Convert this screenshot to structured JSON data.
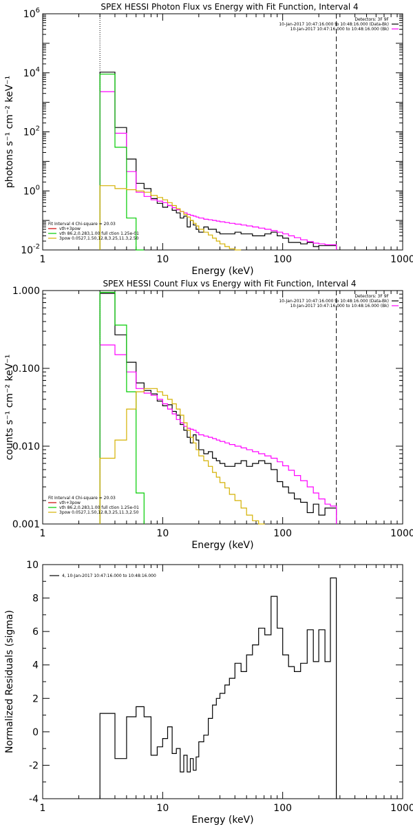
{
  "chart_data": [
    {
      "type": "line",
      "title": "SPEX HESSI Photon Flux vs Energy with Fit Function, Interval 4",
      "xlabel": "Energy (keV)",
      "ylabel": "photons s⁻¹ cm⁻² keV⁻¹",
      "xscale": "log",
      "yscale": "log",
      "xlim": [
        1,
        1000
      ],
      "ylim": [
        0.01,
        1000000
      ],
      "x_tick_labels": [
        "1",
        "10",
        "100",
        "1000"
      ],
      "y_tick_labels": [
        {
          "value": 0.01,
          "base": "10",
          "exp": "-2"
        },
        {
          "value": 1,
          "base": "10",
          "exp": "0"
        },
        {
          "value": 100,
          "base": "10",
          "exp": "2"
        },
        {
          "value": 10000,
          "base": "10",
          "exp": "4"
        },
        {
          "value": 1000000,
          "base": "10",
          "exp": "6"
        }
      ],
      "vlines": [
        3,
        280
      ],
      "top_right_legend": [
        {
          "text": "Detectors: 3F 9F",
          "color": ""
        },
        {
          "text": "10-Jan-2017 10:47:16.000 to 10:48:16.000 (Data-Bk)",
          "color": "#000000"
        },
        {
          "text": "10-Jan-2017 10:47:16.000 to 10:48:16.000 (Bk)",
          "color": "#ff00ff"
        }
      ],
      "bottom_left_legend": [
        {
          "text": "Fit Interval 4   Chi-square = 20.03",
          "color": ""
        },
        {
          "text": "vth+3pow",
          "color": "#cc0000"
        },
        {
          "text": "vth 86.2,0.283,1.00  full ction 1.25e-01",
          "color": "#00cc00"
        },
        {
          "text": "3pow 0.0527,1.50,12.8,3.25,11.3,2.50",
          "color": "#d4b000"
        }
      ],
      "edges": [
        3,
        4,
        5,
        6,
        7,
        8,
        9,
        10,
        11,
        12,
        13,
        14,
        15,
        16,
        17,
        18,
        19,
        20,
        22,
        24,
        26,
        28,
        30,
        33,
        36,
        40,
        45,
        50,
        56,
        63,
        71,
        80,
        90,
        100,
        112,
        125,
        141,
        160,
        180,
        200,
        225,
        250,
        280
      ],
      "series": [
        {
          "name": "",
          "color": "#000000",
          "values": [
            10500,
            140,
            12,
            1.8,
            1.2,
            0.55,
            0.38,
            0.28,
            0.32,
            0.22,
            0.18,
            0.12,
            0.14,
            0.06,
            0.1,
            0.07,
            0.05,
            0.04,
            0.06,
            0.05,
            0.05,
            0.04,
            0.035,
            0.035,
            0.035,
            0.04,
            0.035,
            0.035,
            0.03,
            0.03,
            0.035,
            0.04,
            0.03,
            0.025,
            0.018,
            0.018,
            0.016,
            0.018,
            0.013,
            0.014,
            0.014,
            0.014
          ]
        },
        {
          "name": "",
          "color": "#ff00ff",
          "values": [
            2300,
            90,
            4.5,
            0.9,
            0.65,
            0.5,
            0.45,
            0.4,
            0.32,
            0.27,
            0.23,
            0.2,
            0.18,
            0.16,
            0.15,
            0.14,
            0.13,
            0.12,
            0.11,
            0.105,
            0.1,
            0.095,
            0.09,
            0.085,
            0.08,
            0.075,
            0.07,
            0.065,
            0.06,
            0.055,
            0.05,
            0.045,
            0.04,
            0.035,
            0.03,
            0.026,
            0.022,
            0.019,
            0.017,
            0.016,
            0.015,
            0.015
          ]
        },
        {
          "name": "",
          "color": "#00cc00",
          "values": [
            9000,
            30,
            0.12,
            0.001
          ]
        },
        {
          "name": "",
          "color": "#d4b000",
          "values": [
            1.5,
            1.2,
            1.1,
            1.0,
            0.9,
            0.7,
            0.6,
            0.5,
            0.4,
            0.32,
            0.25,
            0.2,
            0.16,
            0.13,
            0.1,
            0.08,
            0.065,
            0.05,
            0.04,
            0.032,
            0.025,
            0.02,
            0.016,
            0.013,
            0.011,
            0.009
          ]
        }
      ]
    },
    {
      "type": "line",
      "title": "SPEX HESSI Count Flux vs Energy with Fit Function, Interval 4",
      "xlabel": "Energy (keV)",
      "ylabel": "counts s⁻¹ cm⁻² keV⁻¹",
      "xscale": "log",
      "yscale": "log",
      "xlim": [
        1,
        1000
      ],
      "ylim": [
        0.001,
        1.0
      ],
      "x_tick_labels": [
        "1",
        "10",
        "100",
        "1000"
      ],
      "y_tick_labels": [
        {
          "value": 0.001,
          "base": "0.001",
          "exp": ""
        },
        {
          "value": 0.01,
          "base": "0.010",
          "exp": ""
        },
        {
          "value": 0.1,
          "base": "0.100",
          "exp": ""
        },
        {
          "value": 1.0,
          "base": "1.000",
          "exp": ""
        }
      ],
      "vlines": [
        3,
        280
      ],
      "top_right_legend": [
        {
          "text": "Detectors: 3F 9F",
          "color": ""
        },
        {
          "text": "10-Jan-2017 10:47:16.000 to 10:48:16.000 (Data-Bk)",
          "color": "#000000"
        },
        {
          "text": "10-Jan-2017 10:47:16.000 to 10:48:16.000 (Bk)",
          "color": "#ff00ff"
        }
      ],
      "bottom_left_legend": [
        {
          "text": "Fit Interval 4   Chi-square = 20.03",
          "color": ""
        },
        {
          "text": "vth+3pow",
          "color": "#cc0000"
        },
        {
          "text": "vth 86.2,0.283,1.00  full ction 1.25e-01",
          "color": "#00cc00"
        },
        {
          "text": "3pow 0.0527,1.50,12.8,3.25,11.3,2.50",
          "color": "#d4b000"
        }
      ],
      "edges": [
        3,
        4,
        5,
        6,
        7,
        8,
        9,
        10,
        11,
        12,
        13,
        14,
        15,
        16,
        17,
        18,
        19,
        20,
        22,
        24,
        26,
        28,
        30,
        33,
        36,
        40,
        45,
        50,
        56,
        63,
        71,
        80,
        90,
        100,
        112,
        125,
        141,
        160,
        180,
        200,
        225,
        250,
        280
      ],
      "series": [
        {
          "name": "",
          "color": "#000000",
          "values": [
            0.92,
            0.27,
            0.12,
            0.065,
            0.052,
            0.047,
            0.038,
            0.033,
            0.034,
            0.028,
            0.025,
            0.019,
            0.016,
            0.013,
            0.011,
            0.014,
            0.012,
            0.009,
            0.008,
            0.0085,
            0.007,
            0.0065,
            0.006,
            0.0055,
            0.0055,
            0.006,
            0.0065,
            0.0055,
            0.006,
            0.0065,
            0.006,
            0.005,
            0.0035,
            0.003,
            0.0025,
            0.0021,
            0.0019,
            0.0014,
            0.0018,
            0.0013,
            0.0016,
            0.0016
          ]
        },
        {
          "name": "",
          "color": "#ff00ff",
          "values": [
            0.2,
            0.15,
            0.09,
            0.055,
            0.048,
            0.045,
            0.04,
            0.035,
            0.03,
            0.026,
            0.022,
            0.02,
            0.018,
            0.017,
            0.0165,
            0.016,
            0.015,
            0.014,
            0.0135,
            0.013,
            0.0125,
            0.012,
            0.0115,
            0.011,
            0.0105,
            0.01,
            0.0095,
            0.009,
            0.0085,
            0.008,
            0.0075,
            0.007,
            0.0063,
            0.0056,
            0.0049,
            0.0042,
            0.0036,
            0.003,
            0.0025,
            0.0021,
            0.0018,
            0.0017
          ]
        },
        {
          "name": "",
          "color": "#00cc00",
          "values": [
            0.95,
            0.36,
            0.05,
            0.0025
          ]
        },
        {
          "name": "",
          "color": "#d4b000",
          "values": [
            0.007,
            0.012,
            0.03,
            0.05,
            0.055,
            0.055,
            0.05,
            0.045,
            0.04,
            0.035,
            0.03,
            0.025,
            0.02,
            0.016,
            0.013,
            0.011,
            0.009,
            0.0075,
            0.0065,
            0.0055,
            0.0046,
            0.004,
            0.0034,
            0.0029,
            0.0024,
            0.002,
            0.0016,
            0.0013,
            0.0011,
            0.0009
          ]
        }
      ]
    },
    {
      "type": "line",
      "title": "",
      "xlabel": "Energy (keV)",
      "ylabel": "Normalized Residuals (sigma)",
      "xscale": "log",
      "yscale": "linear",
      "xlim": [
        1,
        1000
      ],
      "ylim": [
        -4,
        10
      ],
      "x_tick_labels": [
        "1",
        "10",
        "100",
        "1000"
      ],
      "y_ticks": [
        -4,
        -2,
        0,
        2,
        4,
        6,
        8,
        10
      ],
      "legend": [
        {
          "text": "4, 10-Jan-2017 10:47:16.000 to 10:48:16.000",
          "color": "#000000"
        }
      ],
      "edges": [
        3,
        4,
        5,
        6,
        7,
        8,
        9,
        10,
        11,
        12,
        13,
        14,
        15,
        16,
        17,
        18,
        19,
        20,
        22,
        24,
        26,
        28,
        30,
        33,
        36,
        40,
        45,
        50,
        56,
        63,
        71,
        80,
        90,
        100,
        112,
        125,
        141,
        160,
        180,
        200,
        225,
        250,
        280
      ],
      "series": [
        {
          "name": "",
          "color": "#000000",
          "values": [
            1.1,
            -1.6,
            0.9,
            1.5,
            0.9,
            -1.4,
            -0.9,
            -0.4,
            0.3,
            -1.3,
            -1.0,
            -2.4,
            -1.4,
            -2.4,
            -1.6,
            -2.3,
            -1.5,
            -0.6,
            -0.2,
            0.8,
            1.6,
            2.0,
            2.3,
            2.8,
            3.2,
            4.1,
            3.6,
            4.6,
            5.2,
            6.2,
            5.8,
            8.1,
            6.2,
            4.6,
            3.9,
            3.6,
            4.1,
            6.1,
            4.2,
            6.1,
            4.2,
            9.2
          ]
        }
      ]
    }
  ]
}
